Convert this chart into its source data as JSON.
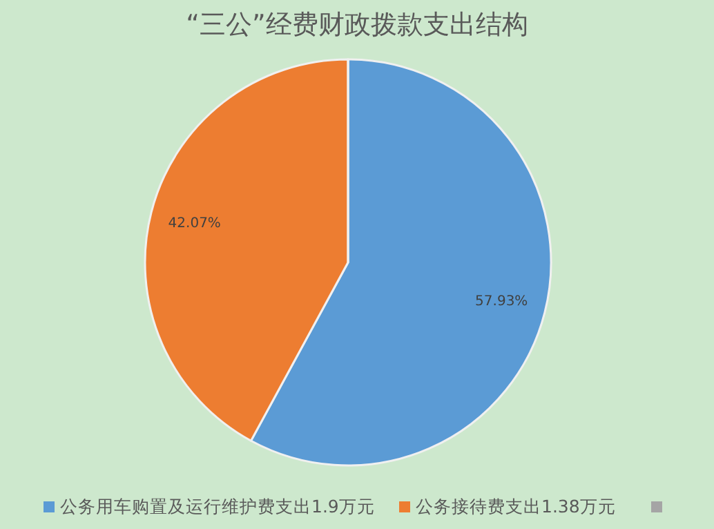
{
  "chart_data": {
    "type": "pie",
    "title": "“三公”经费财政拨款支出结构",
    "categories": [
      "公务用车购置及运行维护费支出1.9万元",
      "公务接待费支出1.38万元",
      null
    ],
    "values": [
      57.93,
      42.07,
      0
    ],
    "colors": [
      "#5b9bd5",
      "#ed7d31",
      "#a5a5a5"
    ],
    "value_labels": [
      "57.93%",
      "42.07%",
      null
    ],
    "legend": "bottom"
  }
}
